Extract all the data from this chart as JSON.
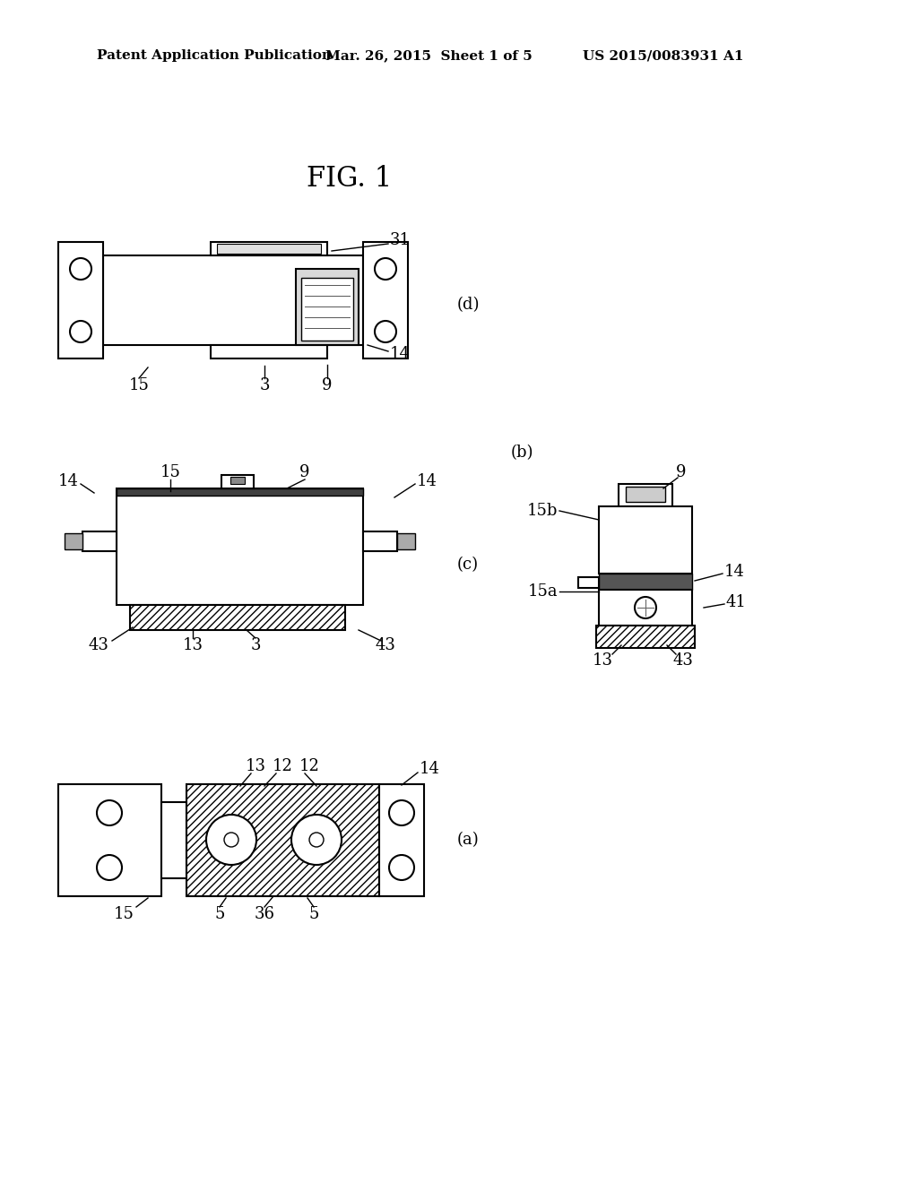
{
  "bg_color": "#ffffff",
  "header_left": "Patent Application Publication",
  "header_mid": "Mar. 26, 2015  Sheet 1 of 5",
  "header_right": "US 2015/0083931 A1",
  "fig_title": "FIG. 1",
  "line_color": "#000000",
  "lw_main": 1.5,
  "lw_thin": 1.0,
  "fs_label": 13,
  "fs_header": 11,
  "fs_fig": 22
}
